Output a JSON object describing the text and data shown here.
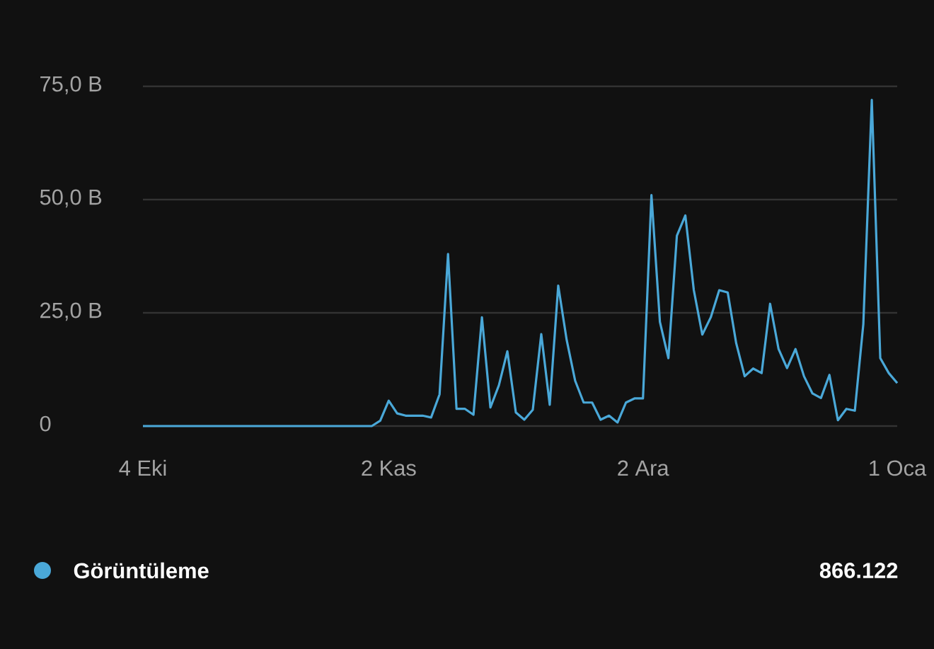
{
  "chart_data": {
    "type": "line",
    "categories": [
      "4 Eki",
      null,
      null,
      null,
      null,
      null,
      null,
      null,
      null,
      null,
      null,
      null,
      null,
      null,
      null,
      null,
      null,
      null,
      null,
      null,
      null,
      null,
      null,
      null,
      null,
      null,
      null,
      null,
      null,
      "2 Kas",
      null,
      null,
      null,
      null,
      null,
      null,
      null,
      null,
      null,
      null,
      null,
      null,
      null,
      null,
      null,
      null,
      null,
      null,
      null,
      null,
      null,
      null,
      null,
      null,
      null,
      null,
      null,
      null,
      null,
      "2 Ara",
      null,
      null,
      null,
      null,
      null,
      null,
      null,
      null,
      null,
      null,
      null,
      null,
      null,
      null,
      null,
      null,
      null,
      null,
      null,
      null,
      null,
      null,
      null,
      null,
      null,
      null,
      null,
      null,
      null,
      "1 Oca"
    ],
    "series": [
      {
        "name": "Görüntüleme",
        "color": "#4aa8d8",
        "values": [
          0,
          0,
          0,
          0,
          0,
          0,
          0,
          0,
          0,
          0,
          0,
          0,
          0,
          0,
          0,
          0,
          0,
          0,
          0,
          0,
          0,
          0,
          0,
          0,
          0,
          0,
          0,
          0,
          1.2,
          5.6,
          2.8,
          2.3,
          2.3,
          2.3,
          1.9,
          7,
          38,
          3.8,
          3.8,
          2.5,
          24,
          4.1,
          9,
          16.5,
          3,
          1.4,
          3.6,
          20.3,
          4.7,
          31,
          19,
          10,
          5.2,
          5.2,
          1.4,
          2.3,
          0.8,
          5.2,
          6.1,
          6.1,
          51,
          23,
          15,
          42,
          46.5,
          30,
          20.2,
          24,
          30,
          29.5,
          18.3,
          11,
          12.7,
          11.7,
          27,
          17,
          12.8,
          17,
          11,
          7.2,
          6.2,
          11.3,
          1.3,
          3.8,
          3.4,
          22.5,
          72,
          15,
          11.7,
          9.5
        ]
      }
    ],
    "ylim": [
      0,
      75
    ],
    "yticks": [
      {
        "value": 0,
        "label": "0"
      },
      {
        "value": 25,
        "label": "25,0 B"
      },
      {
        "value": 50,
        "label": "50,0 B"
      },
      {
        "value": 75,
        "label": "75,0 B"
      }
    ],
    "grid": "y",
    "legend": "bottom",
    "annotations": [
      "866.122"
    ]
  }
}
